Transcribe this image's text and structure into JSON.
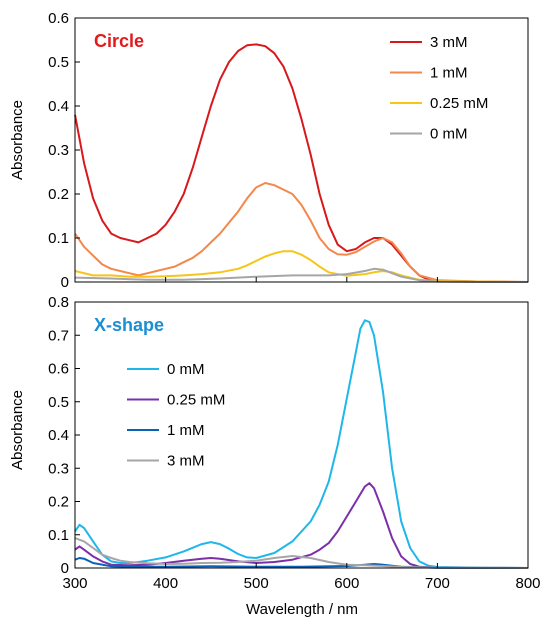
{
  "chart_data": [
    {
      "type": "line",
      "title": "Circle",
      "title_color": "#e31a1c",
      "xlabel": "",
      "ylabel": "Absorbance",
      "xlim": [
        300,
        800
      ],
      "ylim": [
        0,
        0.6
      ],
      "xticks": [
        300,
        400,
        500,
        600,
        700,
        800
      ],
      "xtick_labels_shown": false,
      "yticks": [
        "0",
        "0.1",
        "0.2",
        "0.3",
        "0.4",
        "0.5",
        "0.6"
      ],
      "grid": false,
      "legend": "top-right",
      "series": [
        {
          "name": "3 mM",
          "color": "#d7191c",
          "x": [
            300,
            310,
            320,
            330,
            340,
            350,
            360,
            370,
            380,
            390,
            400,
            410,
            420,
            430,
            440,
            450,
            460,
            470,
            480,
            490,
            500,
            510,
            520,
            530,
            540,
            550,
            560,
            570,
            580,
            590,
            600,
            610,
            620,
            630,
            640,
            650,
            660,
            670,
            680,
            690,
            700,
            720,
            750,
            800
          ],
          "y": [
            0.38,
            0.27,
            0.19,
            0.14,
            0.11,
            0.1,
            0.095,
            0.09,
            0.1,
            0.11,
            0.13,
            0.16,
            0.2,
            0.26,
            0.33,
            0.4,
            0.46,
            0.5,
            0.525,
            0.538,
            0.54,
            0.536,
            0.52,
            0.49,
            0.44,
            0.37,
            0.29,
            0.2,
            0.13,
            0.085,
            0.07,
            0.075,
            0.09,
            0.1,
            0.1,
            0.085,
            0.06,
            0.035,
            0.015,
            0.006,
            0.003,
            0.002,
            0.001,
            0
          ]
        },
        {
          "name": "1 mM",
          "color": "#f4874b",
          "x": [
            300,
            310,
            320,
            330,
            340,
            350,
            360,
            370,
            380,
            390,
            400,
            410,
            420,
            430,
            440,
            450,
            460,
            470,
            480,
            490,
            500,
            510,
            520,
            530,
            540,
            550,
            560,
            570,
            580,
            590,
            600,
            610,
            620,
            630,
            640,
            650,
            660,
            670,
            680,
            700,
            750,
            800
          ],
          "y": [
            0.11,
            0.08,
            0.06,
            0.04,
            0.03,
            0.025,
            0.02,
            0.015,
            0.02,
            0.025,
            0.03,
            0.035,
            0.045,
            0.055,
            0.07,
            0.09,
            0.11,
            0.135,
            0.16,
            0.19,
            0.215,
            0.225,
            0.22,
            0.21,
            0.2,
            0.175,
            0.14,
            0.1,
            0.075,
            0.063,
            0.062,
            0.068,
            0.08,
            0.092,
            0.1,
            0.09,
            0.065,
            0.035,
            0.015,
            0.004,
            0.001,
            0
          ]
        },
        {
          "name": "0.25 mM",
          "color": "#f5c518",
          "x": [
            300,
            320,
            340,
            360,
            380,
            400,
            420,
            440,
            460,
            480,
            490,
            500,
            510,
            520,
            530,
            540,
            550,
            560,
            570,
            580,
            600,
            620,
            630,
            640,
            650,
            660,
            680,
            700,
            750,
            800
          ],
          "y": [
            0.025,
            0.015,
            0.015,
            0.012,
            0.012,
            0.013,
            0.015,
            0.018,
            0.022,
            0.03,
            0.038,
            0.048,
            0.058,
            0.065,
            0.07,
            0.07,
            0.062,
            0.05,
            0.035,
            0.022,
            0.014,
            0.018,
            0.022,
            0.025,
            0.022,
            0.015,
            0.005,
            0.002,
            0.001,
            0
          ]
        },
        {
          "name": "0 mM",
          "color": "#a6a6a6",
          "x": [
            300,
            340,
            380,
            420,
            460,
            500,
            540,
            580,
            600,
            620,
            630,
            640,
            650,
            660,
            680,
            700,
            750,
            800
          ],
          "y": [
            0.01,
            0.008,
            0.005,
            0.005,
            0.008,
            0.012,
            0.015,
            0.015,
            0.018,
            0.025,
            0.03,
            0.028,
            0.02,
            0.012,
            0.004,
            0.001,
            0,
            0
          ]
        }
      ]
    },
    {
      "type": "line",
      "title": "X-shape",
      "title_color": "#1a8fd4",
      "xlabel": "Wavelength / nm",
      "ylabel": "Absorbance",
      "xlim": [
        300,
        800
      ],
      "ylim": [
        0,
        0.8
      ],
      "xticks": [
        "300",
        "400",
        "500",
        "600",
        "700",
        "800"
      ],
      "yticks": [
        "0",
        "0.1",
        "0.2",
        "0.3",
        "0.4",
        "0.5",
        "0.6",
        "0.7",
        "0.8"
      ],
      "grid": false,
      "legend": "middle-left",
      "series": [
        {
          "name": "0 mM",
          "color": "#1fb7ea",
          "x": [
            300,
            305,
            310,
            320,
            330,
            340,
            350,
            360,
            370,
            380,
            400,
            420,
            440,
            450,
            460,
            470,
            480,
            490,
            500,
            520,
            540,
            560,
            570,
            580,
            590,
            600,
            610,
            615,
            620,
            625,
            630,
            640,
            650,
            660,
            670,
            680,
            690,
            700,
            750,
            800
          ],
          "y": [
            0.11,
            0.13,
            0.12,
            0.08,
            0.04,
            0.02,
            0.015,
            0.015,
            0.018,
            0.022,
            0.032,
            0.05,
            0.072,
            0.078,
            0.072,
            0.058,
            0.042,
            0.032,
            0.03,
            0.045,
            0.08,
            0.14,
            0.19,
            0.26,
            0.37,
            0.51,
            0.65,
            0.72,
            0.745,
            0.74,
            0.7,
            0.53,
            0.3,
            0.14,
            0.06,
            0.02,
            0.007,
            0.003,
            0.001,
            0
          ]
        },
        {
          "name": "0.25 mM",
          "color": "#7b2fa8",
          "x": [
            300,
            305,
            310,
            320,
            330,
            340,
            360,
            380,
            400,
            420,
            440,
            450,
            460,
            480,
            500,
            520,
            540,
            560,
            570,
            580,
            590,
            600,
            610,
            620,
            625,
            630,
            640,
            650,
            660,
            670,
            680,
            700,
            750,
            800
          ],
          "y": [
            0.055,
            0.065,
            0.055,
            0.035,
            0.02,
            0.01,
            0.008,
            0.01,
            0.015,
            0.022,
            0.028,
            0.03,
            0.028,
            0.02,
            0.015,
            0.018,
            0.025,
            0.04,
            0.055,
            0.075,
            0.11,
            0.155,
            0.2,
            0.245,
            0.255,
            0.24,
            0.17,
            0.09,
            0.035,
            0.012,
            0.004,
            0.001,
            0,
            0
          ]
        },
        {
          "name": "1 mM",
          "color": "#0a62b8",
          "x": [
            300,
            305,
            310,
            320,
            340,
            360,
            400,
            450,
            500,
            550,
            600,
            620,
            630,
            640,
            660,
            700,
            800
          ],
          "y": [
            0.025,
            0.03,
            0.028,
            0.015,
            0.005,
            0.004,
            0.004,
            0.005,
            0.004,
            0.004,
            0.006,
            0.01,
            0.012,
            0.01,
            0.004,
            0.001,
            0
          ]
        },
        {
          "name": "3 mM",
          "color": "#a6a6a6",
          "x": [
            300,
            310,
            320,
            330,
            340,
            350,
            360,
            380,
            400,
            420,
            440,
            460,
            480,
            500,
            520,
            540,
            560,
            580,
            600,
            620,
            640,
            660,
            700,
            800
          ],
          "y": [
            0.09,
            0.08,
            0.06,
            0.04,
            0.03,
            0.022,
            0.018,
            0.014,
            0.012,
            0.013,
            0.015,
            0.016,
            0.018,
            0.022,
            0.03,
            0.036,
            0.03,
            0.018,
            0.01,
            0.008,
            0.006,
            0.003,
            0.001,
            0
          ]
        }
      ]
    }
  ]
}
